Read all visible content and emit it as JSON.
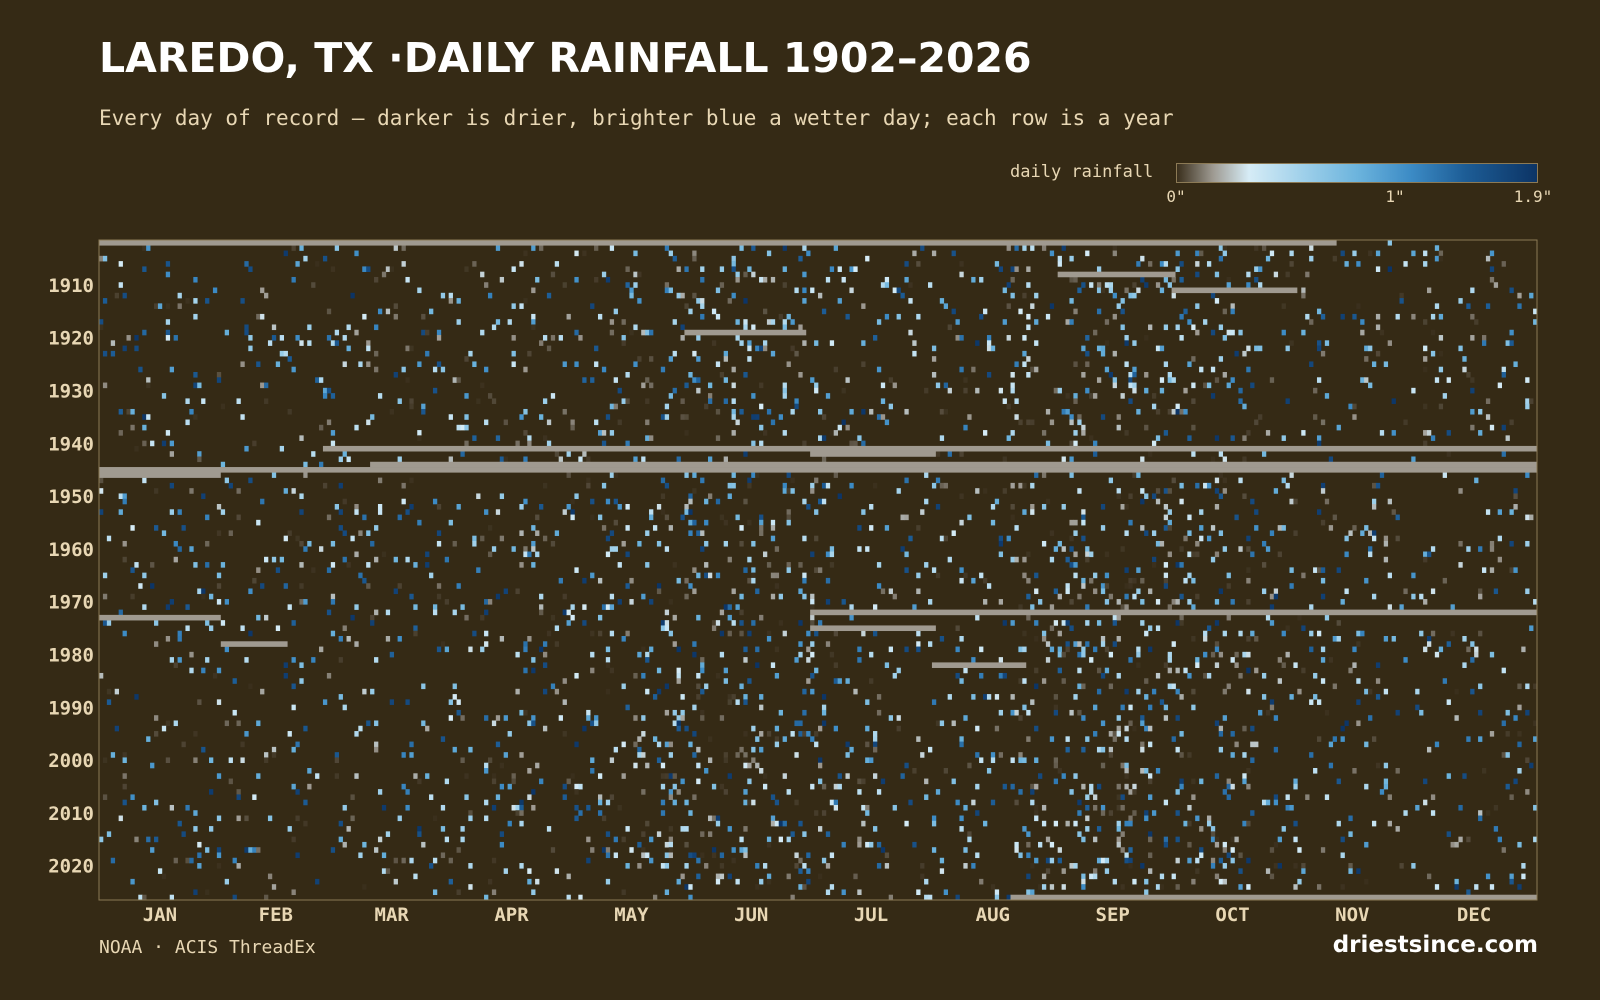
{
  "title": "LAREDO, TX ·DAILY RAINFALL 1902–2026",
  "subtitle": "Every day of record — darker is drier, brighter blue a wetter day; each row is a year",
  "legend": {
    "label": "daily rainfall",
    "ticks": [
      "0\"",
      "1\"",
      "1.9\""
    ],
    "tick_values": [
      0,
      1,
      1.9
    ]
  },
  "source": "NOAA · ACIS ThreadEx",
  "brand": "driestsince.com",
  "colors": {
    "background": "#352a15",
    "dry": "#352a15",
    "light": "#d6ecf6",
    "mid_blue": "#6cb4dd",
    "wet_blue": "#0c3465",
    "missing": "#a09a90",
    "axis_text": "#e8d7b4",
    "frame": "#8c7a55"
  },
  "chart_data": {
    "type": "heatmap",
    "title": "LAREDO, TX ·DAILY RAINFALL 1902–2026",
    "x_axis": "day of year",
    "y_axis": "year",
    "x_tick_labels": [
      "JAN",
      "FEB",
      "MAR",
      "APR",
      "MAY",
      "JUN",
      "JUL",
      "AUG",
      "SEP",
      "OCT",
      "NOV",
      "DEC"
    ],
    "month_start_days": [
      1,
      32,
      60,
      91,
      121,
      152,
      182,
      213,
      244,
      274,
      305,
      335
    ],
    "y_tick_labels": [
      "1910",
      "1920",
      "1930",
      "1940",
      "1950",
      "1960",
      "1970",
      "1980",
      "1990",
      "2000",
      "2010",
      "2020"
    ],
    "year_range": [
      1902,
      2026
    ],
    "day_range": [
      1,
      366
    ],
    "value_range": [
      0,
      1.9
    ],
    "value_unit": "inches",
    "missing_segments": [
      {
        "year": 1902,
        "start_day": 1,
        "end_day": 315
      },
      {
        "year": 1908,
        "start_day": 245,
        "end_day": 274
      },
      {
        "year": 1911,
        "start_day": 274,
        "end_day": 305
      },
      {
        "year": 1919,
        "start_day": 150,
        "end_day": 180
      },
      {
        "year": 1941,
        "start_day": 58,
        "end_day": 366
      },
      {
        "year": 1942,
        "start_day": 182,
        "end_day": 213
      },
      {
        "year": 1944,
        "start_day": 70,
        "end_day": 366
      },
      {
        "year": 1945,
        "start_day": 1,
        "end_day": 366
      },
      {
        "year": 1946,
        "start_day": 1,
        "end_day": 31
      },
      {
        "year": 1972,
        "start_day": 182,
        "end_day": 366
      },
      {
        "year": 1973,
        "start_day": 1,
        "end_day": 31
      },
      {
        "year": 1975,
        "start_day": 182,
        "end_day": 213
      },
      {
        "year": 1978,
        "start_day": 32,
        "end_day": 48
      },
      {
        "year": 1982,
        "start_day": 213,
        "end_day": 236
      },
      {
        "year": 2026,
        "start_day": 233,
        "end_day": 366
      }
    ],
    "grid": false
  }
}
